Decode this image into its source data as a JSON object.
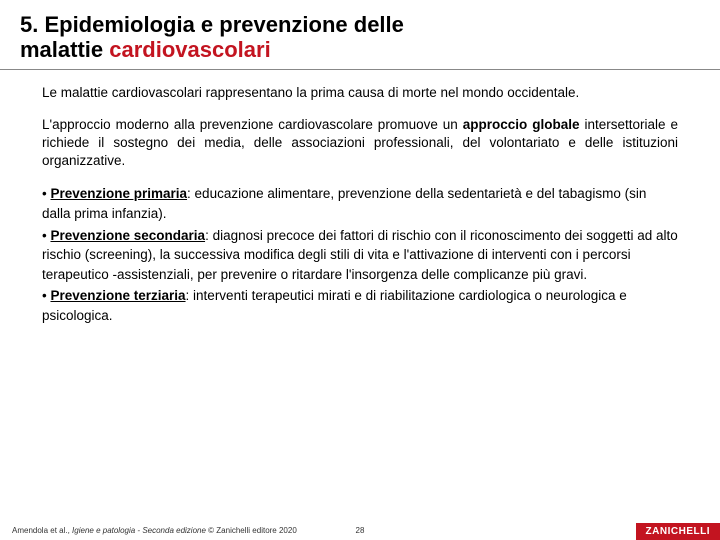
{
  "colors": {
    "accent": "#c31420",
    "text": "#000000",
    "background": "#ffffff",
    "rule": "#888888"
  },
  "typography": {
    "title_fontsize": 22,
    "body_fontsize": 13.5,
    "footer_fontsize": 8,
    "font_family": "Arial"
  },
  "title": {
    "line1": "5. Epidemiologia e prevenzione delle",
    "line2_plain": "malattie ",
    "line2_accent": "cardiovascolari"
  },
  "para1": "Le malattie cardiovascolari rappresentano la prima causa di morte nel mondo occidentale.",
  "para2_lead": "L'approccio moderno alla prevenzione cardiovascolare promuove un ",
  "para2_bold": "approccio globale",
  "para2_tail": " intersettoriale e richiede il sostegno dei media, delle associazioni professionali, del volontariato e delle istituzioni organizzative.",
  "bullets": [
    {
      "marker": "• ",
      "term": "Prevenzione primaria",
      "text": ": educazione alimentare, prevenzione della sedentarietà e del tabagismo (sin dalla prima infanzia)."
    },
    {
      "marker": "• ",
      "term": "Prevenzione secondaria",
      "text": ": diagnosi precoce dei fattori di rischio con il riconoscimento dei soggetti ad alto rischio (screening), la successiva modifica degli stili di vita e l'attivazione di interventi con i percorsi terapeutico -assistenziali, per prevenire o ritardare l'insorgenza delle complicanze più gravi."
    },
    {
      "marker": "• ",
      "term": "Prevenzione terziaria",
      "text": ": interventi terapeutici mirati e di riabilitazione cardiologica o neurologica e psicologica."
    }
  ],
  "footer": {
    "credit_pre": "Amendola et al., ",
    "credit_italic": "Igiene e patologia - Seconda edizione",
    "credit_post": " © Zanichelli editore 2020",
    "page": "28",
    "logo": "ZANICHELLI"
  }
}
